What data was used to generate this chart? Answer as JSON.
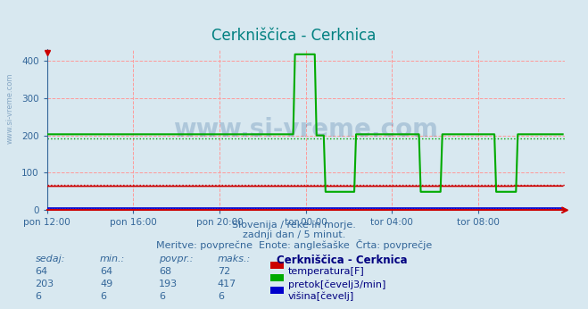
{
  "title": "Cerkniščica - Cerknica",
  "title_color": "#008080",
  "bg_color": "#d8e8f0",
  "plot_bg_color": "#d8e8f0",
  "grid_color": "#ff9999",
  "xlabel_ticks": [
    "pon 12:00",
    "pon 16:00",
    "pon 20:00",
    "tor 00:00",
    "tor 04:00",
    "tor 08:00"
  ],
  "ylabel_ticks": [
    0,
    100,
    200,
    300,
    400
  ],
  "ylim": [
    0,
    430
  ],
  "xlim": [
    0,
    288
  ],
  "subtitle1": "Slovenija / reke in morje.",
  "subtitle2": "zadnji dan / 5 minut.",
  "subtitle3": "Meritve: povprečne  Enote: anglešaške  Črta: povprečje",
  "watermark": "www.si-vreme.com",
  "temp_color": "#cc0000",
  "flow_color": "#00aa00",
  "height_color": "#0000cc",
  "avg_temp": 68,
  "avg_flow": 193,
  "avg_height": 6,
  "table_headers": [
    "sedaj:",
    "min.:",
    "povpr.:",
    "maks.:"
  ],
  "table_rows": [
    {
      "sedaj": 64,
      "min": 64,
      "povpr": 68,
      "maks": 72,
      "color": "#cc0000",
      "label": "temperatura[F]"
    },
    {
      "sedaj": 203,
      "min": 49,
      "povpr": 193,
      "maks": 417,
      "color": "#00aa00",
      "label": "pretok[čevelj3/min]"
    },
    {
      "sedaj": 6,
      "min": 6,
      "povpr": 6,
      "maks": 6,
      "color": "#0000cc",
      "label": "višina[čevelj]"
    }
  ],
  "table_title": "Cerkniščica - Cerknica"
}
